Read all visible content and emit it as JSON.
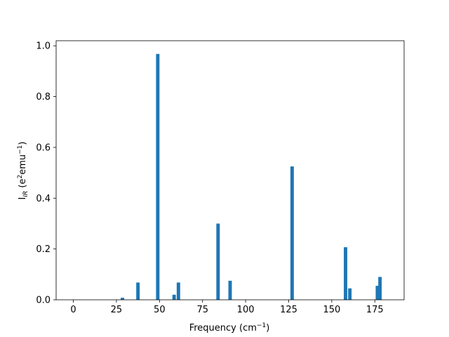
{
  "chart_data": {
    "type": "bar",
    "title": "",
    "xlabel": {
      "base": "Frequency (cm",
      "sup": "−1",
      "tail": ")"
    },
    "ylabel": {
      "prefix": "I",
      "sub": "IR",
      "mid": " (e",
      "sup1": "2",
      "mid2": "emu",
      "sup2": "−1",
      "tail": ")"
    },
    "xlim": [
      -10,
      192
    ],
    "ylim": [
      0,
      1.02
    ],
    "x_ticks": [
      0,
      25,
      50,
      75,
      100,
      125,
      150,
      175
    ],
    "x_tick_labels": [
      "0",
      "25",
      "50",
      "75",
      "100",
      "125",
      "150",
      "175"
    ],
    "y_ticks": [
      0.0,
      0.2,
      0.4,
      0.6,
      0.8,
      1.0
    ],
    "y_tick_labels": [
      "0.0",
      "0.2",
      "0.4",
      "0.6",
      "0.8",
      "1.0"
    ],
    "bar_width": 2,
    "bar_color": "#1f77b4",
    "x": [
      28.5,
      37.5,
      49,
      58.5,
      61,
      84,
      91,
      127,
      158,
      160.5,
      176.5,
      178
    ],
    "values": [
      0.008,
      0.068,
      0.968,
      0.02,
      0.068,
      0.3,
      0.075,
      0.525,
      0.207,
      0.045,
      0.055,
      0.09
    ],
    "grid": false
  }
}
